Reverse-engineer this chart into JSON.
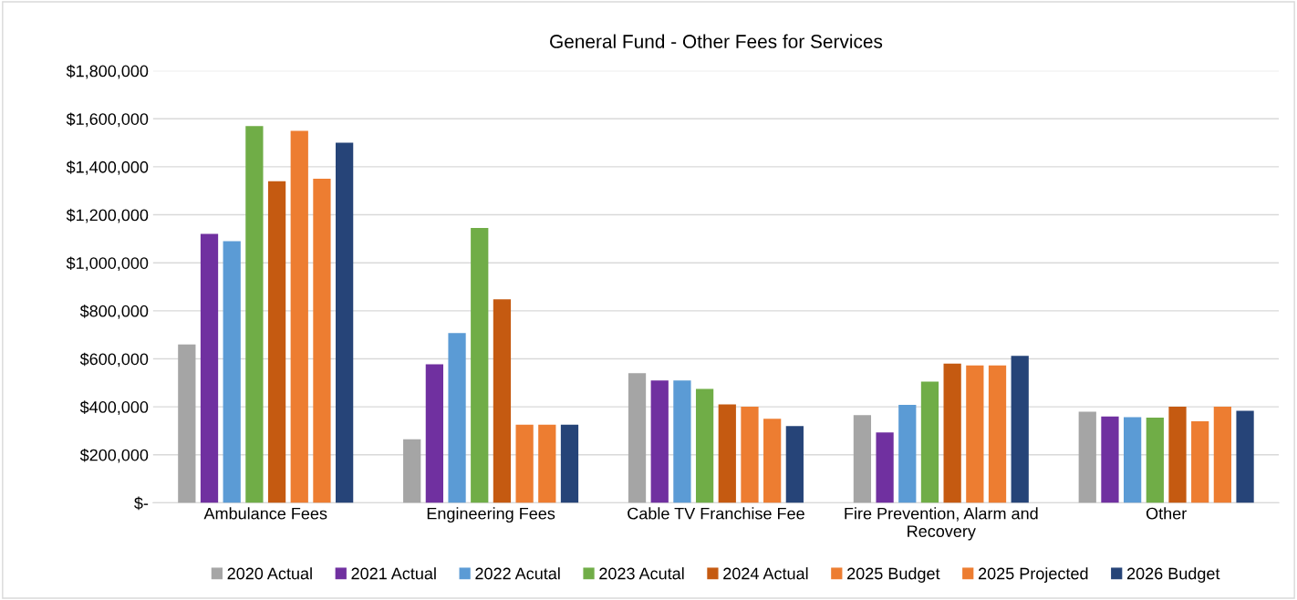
{
  "chart_data": {
    "type": "bar",
    "title": "General Fund - Other Fees for Services",
    "categories": [
      "Ambulance Fees",
      "Engineering Fees",
      "Cable TV Franchise Fee",
      "Fire Prevention, Alarm and Recovery",
      "Other"
    ],
    "series": [
      {
        "name": "2020 Actual",
        "color": "#a5a5a5",
        "values": [
          660000,
          265000,
          540000,
          365000,
          380000
        ]
      },
      {
        "name": "2021 Actual",
        "color": "#7030a0",
        "values": [
          1120000,
          577000,
          510000,
          293000,
          360000
        ]
      },
      {
        "name": "2022 Acutal",
        "color": "#5b9bd5",
        "values": [
          1090000,
          707000,
          510000,
          408000,
          357000
        ]
      },
      {
        "name": "2023 Acutal",
        "color": "#70ad47",
        "values": [
          1570000,
          1145000,
          475000,
          505000,
          355000
        ]
      },
      {
        "name": "2024 Actual",
        "color": "#c55a11",
        "values": [
          1340000,
          848000,
          410000,
          580000,
          400000
        ]
      },
      {
        "name": "2025 Budget",
        "color": "#ed7d31",
        "values": [
          1550000,
          325000,
          400000,
          572000,
          340000
        ]
      },
      {
        "name": "2025 Projected",
        "color": "#ed7d31",
        "values": [
          1350000,
          325000,
          350000,
          572000,
          400000
        ]
      },
      {
        "name": "2026 Budget",
        "color": "#264478",
        "values": [
          1500000,
          325000,
          320000,
          612000,
          383000
        ]
      }
    ],
    "ylim": [
      0,
      1800000
    ],
    "yticks": [
      {
        "value": 0,
        "label": "$-"
      },
      {
        "value": 200000,
        "label": "$200,000"
      },
      {
        "value": 400000,
        "label": "$400,000"
      },
      {
        "value": 600000,
        "label": "$600,000"
      },
      {
        "value": 800000,
        "label": "$800,000"
      },
      {
        "value": 1000000,
        "label": "$1,000,000"
      },
      {
        "value": 1200000,
        "label": "$1,200,000"
      },
      {
        "value": 1400000,
        "label": "$1,400,000"
      },
      {
        "value": 1600000,
        "label": "$1,600,000"
      },
      {
        "value": 1800000,
        "label": "$1,800,000"
      }
    ],
    "grid": "y",
    "legend": "bottom"
  }
}
